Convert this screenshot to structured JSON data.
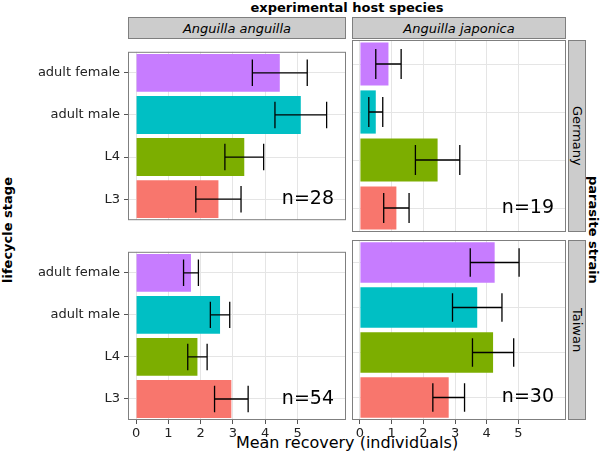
{
  "chart_data": {
    "type": "bar",
    "orientation": "horizontal",
    "title": "experimental host species",
    "x_label": "Mean recovery (individuals)",
    "y_label": "lifecycle stage",
    "row_title": "parasite strain",
    "columns": [
      "Anguilla anguilla",
      "Anguilla japonica"
    ],
    "rows": [
      "Germany",
      "Taiwan"
    ],
    "categories": [
      "adult female",
      "adult male",
      "L4",
      "L3"
    ],
    "colors": [
      "#C77CFF",
      "#00BFC4",
      "#7CAE00",
      "#F8766D"
    ],
    "xlim": [
      -0.25,
      6.5
    ],
    "xticks": [
      0,
      1,
      2,
      3,
      4,
      5
    ],
    "grid": true,
    "panels": [
      {
        "column": "Anguilla anguilla",
        "row": "Germany",
        "annotation": "n=28",
        "values": [
          4.45,
          5.1,
          3.35,
          2.55
        ],
        "errors": [
          0.85,
          0.8,
          0.6,
          0.7
        ]
      },
      {
        "column": "Anguilla japonica",
        "row": "Germany",
        "annotation": "n=19",
        "values": [
          0.9,
          0.5,
          2.45,
          1.15
        ],
        "errors": [
          0.4,
          0.22,
          0.7,
          0.4
        ]
      },
      {
        "column": "Anguilla anguilla",
        "row": "Taiwan",
        "annotation": "n=54",
        "values": [
          1.7,
          2.6,
          1.9,
          2.95
        ],
        "errors": [
          0.23,
          0.3,
          0.3,
          0.52
        ]
      },
      {
        "column": "Anguilla japonica",
        "row": "Taiwan",
        "annotation": "n=30",
        "values": [
          4.25,
          3.7,
          4.2,
          2.8
        ],
        "errors": [
          0.77,
          0.78,
          0.65,
          0.5
        ]
      }
    ]
  }
}
